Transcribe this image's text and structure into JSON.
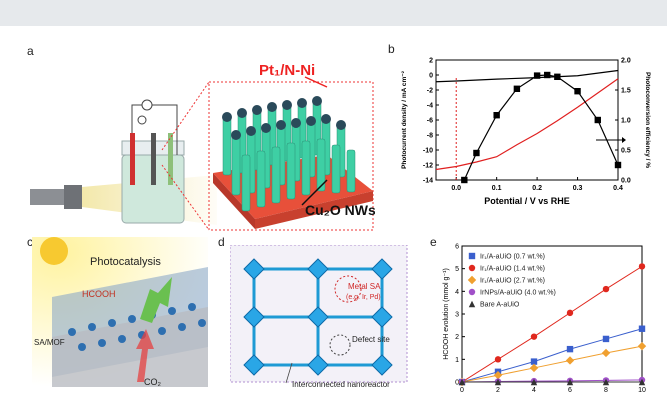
{
  "panels": {
    "a": {
      "label": "a",
      "title": "Pt₁/N-Ni",
      "nws_label": "Cu₂O NWs"
    },
    "b": {
      "label": "b"
    },
    "c": {
      "label": "c",
      "title": "Photocatalysis",
      "hcooh": "HCOOH",
      "mof": "SA/MOF",
      "co2": "CO₂"
    },
    "d": {
      "label": "d",
      "metal_sa": "Metal SA",
      "metal_sa_eg": "(e.g. Ir, Pd)",
      "defect": "Defect site",
      "nanoreactor": "Interconnected nanoreactor"
    },
    "e": {
      "label": "e"
    }
  },
  "chart_data": [
    {
      "type": "line",
      "panel": "b",
      "xlabel": "Potential / V vs RHE",
      "ylabel": "Photocurrent density / mA cm⁻²",
      "y2label": "Photoconversion efficiency / %",
      "xlim": [
        -0.05,
        0.4
      ],
      "ylim": [
        -14,
        2
      ],
      "y2lim": [
        0,
        2.0
      ],
      "xticks": [
        "0.0",
        "0.1",
        "0.2",
        "0.3",
        "0.4"
      ],
      "yticks": [
        "2",
        "0",
        "-2",
        "-4",
        "-6",
        "-8",
        "-10",
        "-12",
        "-14"
      ],
      "y2ticks": [
        "2.0",
        "1.5",
        "1.0",
        "0.5",
        "0.0"
      ],
      "series": [
        {
          "axis": "left",
          "color": "#000000",
          "x": [
            -0.05,
            0.0,
            0.1,
            0.2,
            0.3,
            0.4
          ],
          "y": [
            -0.9,
            -0.8,
            -0.55,
            -0.35,
            -0.1,
            0.6
          ]
        },
        {
          "axis": "left",
          "color": "#e02020",
          "x": [
            -0.05,
            0.0,
            0.05,
            0.1,
            0.15,
            0.2,
            0.25,
            0.3,
            0.35,
            0.4
          ],
          "y": [
            -12.6,
            -12.2,
            -11.6,
            -10.9,
            -9.3,
            -7.8,
            -6.1,
            -4.3,
            -2.4,
            -0.5
          ]
        },
        {
          "axis": "right",
          "color": "#000000",
          "marker": "square",
          "x": [
            0.02,
            0.05,
            0.1,
            0.15,
            0.2,
            0.225,
            0.25,
            0.3,
            0.35,
            0.4
          ],
          "y": [
            0.0,
            0.45,
            1.08,
            1.52,
            1.74,
            1.75,
            1.72,
            1.48,
            1.0,
            0.25
          ]
        }
      ],
      "annotations": [
        {
          "x": 0.0,
          "style": "dashed",
          "color": "#e02020"
        }
      ]
    },
    {
      "type": "line",
      "panel": "e",
      "ylabel": "HCOOH evolution (mmol g⁻¹)",
      "xlim": [
        0,
        10
      ],
      "ylim": [
        0,
        6
      ],
      "xticks": [
        "0",
        "2",
        "4",
        "6",
        "8",
        "10"
      ],
      "yticks": [
        "0",
        "1",
        "2",
        "3",
        "4",
        "5",
        "6"
      ],
      "x": [
        0,
        2,
        4,
        6,
        8,
        10
      ],
      "series": [
        {
          "name": "Ir₁/A-aUiO (0.7 wt.%)",
          "color": "#3a5fcd",
          "marker": "square",
          "values": [
            0,
            0.45,
            0.9,
            1.45,
            1.9,
            2.35
          ]
        },
        {
          "name": "Ir₁/A-aUiO (1.4 wt.%)",
          "color": "#e0281e",
          "marker": "circle",
          "values": [
            0,
            1.0,
            2.0,
            3.05,
            4.1,
            5.1
          ]
        },
        {
          "name": "Ir₁/A-aUiO (2.7 wt.%)",
          "color": "#f0a030",
          "marker": "diamond",
          "values": [
            0,
            0.3,
            0.62,
            0.95,
            1.28,
            1.58
          ]
        },
        {
          "name": "IrNPs/A-aUiO (4.0 wt.%)",
          "color": "#a050c8",
          "marker": "circle",
          "values": [
            0,
            0.02,
            0.04,
            0.05,
            0.07,
            0.09
          ]
        },
        {
          "name": "Bare A-aUiO",
          "color": "#333333",
          "marker": "triangle",
          "values": [
            0,
            0,
            0,
            0,
            0,
            0
          ]
        }
      ]
    }
  ]
}
